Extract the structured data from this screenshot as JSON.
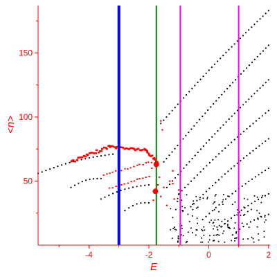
{
  "chart_data": {
    "type": "scatter",
    "title": "",
    "xlabel": "E",
    "ylabel": "<n>",
    "xlim": [
      -5.7,
      2.05
    ],
    "ylim": [
      0,
      187
    ],
    "xticks": [
      {
        "value": -4,
        "label": "-4"
      },
      {
        "value": -2,
        "label": "-2"
      },
      {
        "value": 0,
        "label": "0"
      },
      {
        "value": 2,
        "label": "2"
      }
    ],
    "yticks": [
      {
        "value": 50,
        "label": "50"
      },
      {
        "value": 100,
        "label": "100"
      },
      {
        "value": 150,
        "label": "150"
      }
    ],
    "grid": false,
    "colors": {
      "axis": "#ff0000",
      "black_points": "#000000",
      "red_points": "#ff0000",
      "blue_line": "#0000ff",
      "green_line": "#008000",
      "magenta_line": "#ff00ff"
    },
    "vertical_lines": [
      {
        "x": -3.0,
        "color": "#0000ff",
        "width": "thick"
      },
      {
        "x": -1.75,
        "color": "#008000",
        "width": "thin"
      },
      {
        "x": -0.95,
        "color": "#ff00ff",
        "width": "thin"
      },
      {
        "x": 1.0,
        "color": "#ff00ff",
        "width": "thin"
      }
    ],
    "black_bands": [
      {
        "x0": -5.7,
        "y0": 56,
        "x1": -3.2,
        "y1": 71
      },
      {
        "x0": -4.6,
        "y0": 45,
        "x1": -3.6,
        "y1": 52
      },
      {
        "x0": -3.6,
        "y0": 36,
        "x1": -2.0,
        "y1": 47
      },
      {
        "x0": -2.8,
        "y0": 27,
        "x1": -2.0,
        "y1": 33
      },
      {
        "x0": -1.6,
        "y0": 95,
        "x1": 2.0,
        "y1": 183
      },
      {
        "x0": -1.5,
        "y0": 65,
        "x1": 2.0,
        "y1": 156
      },
      {
        "x0": -1.4,
        "y0": 45,
        "x1": 2.0,
        "y1": 129
      },
      {
        "x0": -1.0,
        "y0": 40,
        "x1": 2.0,
        "y1": 105
      },
      {
        "x0": -0.6,
        "y0": 30,
        "x1": 2.0,
        "y1": 83
      },
      {
        "x0": -0.2,
        "y0": 20,
        "x1": 2.0,
        "y1": 60
      },
      {
        "x0": 0.3,
        "y0": 12,
        "x1": 2.0,
        "y1": 40
      },
      {
        "x0": 0.8,
        "y0": 8,
        "x1": 2.0,
        "y1": 24
      }
    ],
    "red_series": [
      {
        "x0": -4.6,
        "y0": 65,
        "x1": -3.3,
        "y1": 77,
        "size": "large"
      },
      {
        "x0": -3.3,
        "y0": 77,
        "x1": -2.1,
        "y1": 74,
        "size": "large"
      },
      {
        "x0": -2.1,
        "y0": 74,
        "x1": -1.7,
        "y1": 64,
        "size": "large"
      },
      {
        "x0": -3.5,
        "y0": 55,
        "x1": -1.9,
        "y1": 65,
        "size": "small"
      },
      {
        "x0": -3.3,
        "y0": 44,
        "x1": -2.0,
        "y1": 54,
        "size": "small"
      }
    ],
    "red_markers": [
      {
        "x": -1.75,
        "y": 63
      },
      {
        "x": -1.78,
        "y": 42
      }
    ],
    "red_scatter": [
      {
        "x": -1.9,
        "y": 60
      },
      {
        "x": -1.65,
        "y": 53
      },
      {
        "x": -1.6,
        "y": 97
      },
      {
        "x": -1.55,
        "y": 90
      },
      {
        "x": -1.2,
        "y": 48
      },
      {
        "x": -1.3,
        "y": 50
      },
      {
        "x": -1.15,
        "y": 36
      },
      {
        "x": -1.4,
        "y": 31
      },
      {
        "x": -1.6,
        "y": 38
      },
      {
        "x": -1.0,
        "y": 43
      },
      {
        "x": -1.85,
        "y": 35
      },
      {
        "x": -1.5,
        "y": 45
      },
      {
        "x": -1.2,
        "y": 58
      },
      {
        "x": -1.7,
        "y": 47
      }
    ],
    "black_cloud_region": {
      "x0": -1.3,
      "x1": 2.0,
      "y0": 2,
      "y1": 40,
      "count": 150
    }
  }
}
